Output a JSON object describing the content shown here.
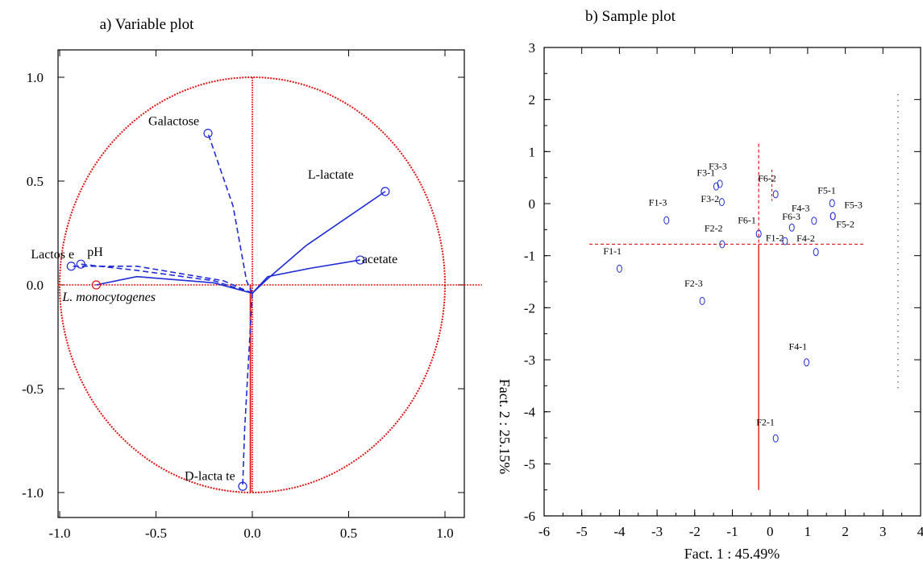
{
  "colors": {
    "vector": "#1f2bd6",
    "circle": "#e01515",
    "axis": "#e01515",
    "marker": "#1f2bd6",
    "frame": "#000000"
  },
  "chart_data": [
    {
      "type": "scatter",
      "title": "a) Variable plot",
      "xlim": [
        -1.1,
        1.1
      ],
      "ylim": [
        -1.1,
        1.1
      ],
      "xticks": [
        "-1.0",
        "-0.5",
        "0.0",
        "0.5",
        "1.0"
      ],
      "yticks": [
        "1.0",
        "0.5",
        "0.0",
        "-0.5",
        "-1.0"
      ],
      "variables": [
        {
          "name": "Galactose",
          "x": -0.23,
          "y": 0.73
        },
        {
          "name": "L-lactate",
          "x": 0.69,
          "y": 0.45
        },
        {
          "name": "acetate",
          "x": 0.56,
          "y": 0.12
        },
        {
          "name": "Lactos e",
          "x": -0.94,
          "y": 0.09
        },
        {
          "name": "pH",
          "x": -0.89,
          "y": 0.1
        },
        {
          "name": "L. monocytogenes",
          "x": -0.81,
          "y": 0.0
        },
        {
          "name": "D-lacta te",
          "x": -0.05,
          "y": -0.97
        }
      ]
    },
    {
      "type": "scatter",
      "title": "b) Sample plot",
      "xlabel": "Fact. 1 : 45.49%",
      "ylabel": "Fact. 2 : 25.15%",
      "xlim": [
        -6,
        4
      ],
      "ylim": [
        -6,
        3
      ],
      "xticks": [
        "-6",
        "-5",
        "-4",
        "-3",
        "-2",
        "-1",
        "0",
        "1",
        "2",
        "3",
        "4"
      ],
      "yticks": [
        "3",
        "2",
        "1",
        "0",
        "-1",
        "-2",
        "-3",
        "-4",
        "-5",
        "-6"
      ],
      "points": [
        {
          "label": "F1-1",
          "x": -4.0,
          "y": -1.25
        },
        {
          "label": "F1-3",
          "x": -2.75,
          "y": -0.32
        },
        {
          "label": "F2-3",
          "x": -1.8,
          "y": -1.87
        },
        {
          "label": "F2-2",
          "x": -1.27,
          "y": -0.78
        },
        {
          "label": "F3-3",
          "x": -1.33,
          "y": 0.38
        },
        {
          "label": "F3-1",
          "x": -1.43,
          "y": 0.33
        },
        {
          "label": "F3-2",
          "x": -1.28,
          "y": 0.03
        },
        {
          "label": "F6-2",
          "x": 0.15,
          "y": 0.18
        },
        {
          "label": "F6-1",
          "x": -0.3,
          "y": -0.58
        },
        {
          "label": "F6-3",
          "x": 0.58,
          "y": -0.46
        },
        {
          "label": "F1-2",
          "x": 0.4,
          "y": -0.72
        },
        {
          "label": "F4-3",
          "x": 1.17,
          "y": -0.33
        },
        {
          "label": "F4-2",
          "x": 1.22,
          "y": -0.93
        },
        {
          "label": "F5-1",
          "x": 1.65,
          "y": 0.01
        },
        {
          "label": "F5-3",
          "x": 1.67,
          "y": -0.24
        },
        {
          "label": "F5-2",
          "x": 1.67,
          "y": -0.24
        },
        {
          "label": "F4-1",
          "x": 0.97,
          "y": -3.05
        },
        {
          "label": "F2-1",
          "x": 0.15,
          "y": -4.51
        }
      ]
    }
  ]
}
